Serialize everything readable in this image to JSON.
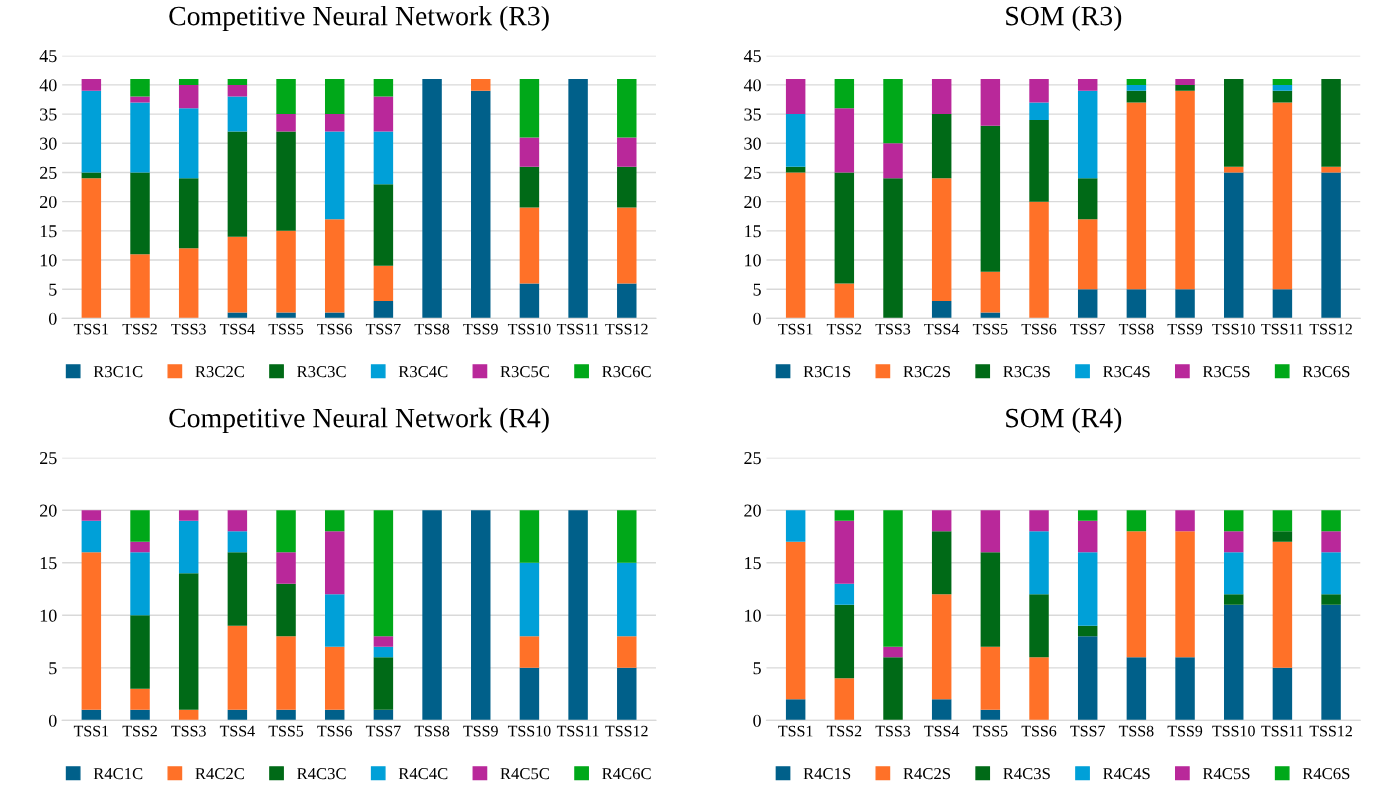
{
  "chart_data": [
    {
      "type": "bar",
      "title": "Competitive Neural Network (R3)",
      "stacked": true,
      "grid": "y",
      "legend": "bottom",
      "categories": [
        "TSS1",
        "TSS2",
        "TSS3",
        "TSS4",
        "TSS5",
        "TSS6",
        "TSS7",
        "TSS8",
        "TSS9",
        "TSS10",
        "TSS11",
        "TSS12"
      ],
      "ylim": [
        0,
        45
      ],
      "yticks": [
        0,
        5,
        10,
        15,
        20,
        25,
        30,
        35,
        40,
        45
      ],
      "series": [
        {
          "name": "R3C1C",
          "color": "#00608a",
          "values": [
            0,
            0,
            0,
            1,
            1,
            1,
            3,
            41,
            39,
            6,
            41,
            6
          ]
        },
        {
          "name": "R3C2C",
          "color": "#ff7128",
          "values": [
            24,
            11,
            12,
            13,
            14,
            16,
            6,
            0,
            2,
            13,
            0,
            13
          ]
        },
        {
          "name": "R3C3C",
          "color": "#006a17",
          "values": [
            1,
            14,
            12,
            18,
            17,
            0,
            14,
            0,
            0,
            7,
            0,
            7
          ]
        },
        {
          "name": "R3C4C",
          "color": "#00a0d8",
          "values": [
            14,
            12,
            12,
            6,
            0,
            15,
            9,
            0,
            0,
            0,
            0,
            0
          ]
        },
        {
          "name": "R3C5C",
          "color": "#b9289a",
          "values": [
            2,
            1,
            4,
            2,
            3,
            3,
            6,
            0,
            0,
            5,
            0,
            5
          ]
        },
        {
          "name": "R3C6C",
          "color": "#00a819",
          "values": [
            0,
            3,
            1,
            1,
            6,
            6,
            3,
            0,
            0,
            10,
            0,
            10
          ]
        }
      ]
    },
    {
      "type": "bar",
      "title": "SOM (R3)",
      "stacked": true,
      "grid": "y",
      "legend": "bottom",
      "categories": [
        "TSS1",
        "TSS2",
        "TSS3",
        "TSS4",
        "TSS5",
        "TSS6",
        "TSS7",
        "TSS8",
        "TSS9",
        "TSS10",
        "TSS11",
        "TSS12"
      ],
      "ylim": [
        0,
        45
      ],
      "yticks": [
        0,
        5,
        10,
        15,
        20,
        25,
        30,
        35,
        40,
        45
      ],
      "series": [
        {
          "name": "R3C1S",
          "color": "#00608a",
          "values": [
            0,
            0,
            0,
            3,
            1,
            0,
            5,
            5,
            5,
            25,
            5,
            25
          ]
        },
        {
          "name": "R3C2S",
          "color": "#ff7128",
          "values": [
            25,
            6,
            0,
            21,
            7,
            20,
            12,
            32,
            34,
            1,
            32,
            1
          ]
        },
        {
          "name": "R3C3S",
          "color": "#006a17",
          "values": [
            1,
            19,
            24,
            11,
            25,
            14,
            7,
            2,
            1,
            15,
            2,
            15
          ]
        },
        {
          "name": "R3C4S",
          "color": "#00a0d8",
          "values": [
            9,
            0,
            0,
            0,
            0,
            3,
            15,
            1,
            0,
            0,
            1,
            0
          ]
        },
        {
          "name": "R3C5S",
          "color": "#b9289a",
          "values": [
            6,
            11,
            6,
            6,
            8,
            4,
            2,
            0,
            1,
            0,
            0,
            0
          ]
        },
        {
          "name": "R3C6S",
          "color": "#00a819",
          "values": [
            0,
            5,
            11,
            0,
            0,
            0,
            0,
            1,
            0,
            0,
            1,
            0
          ]
        }
      ]
    },
    {
      "type": "bar",
      "title": "Competitive Neural Network (R4)",
      "stacked": true,
      "grid": "y",
      "legend": "bottom",
      "categories": [
        "TSS1",
        "TSS2",
        "TSS3",
        "TSS4",
        "TSS5",
        "TSS6",
        "TSS7",
        "TSS8",
        "TSS9",
        "TSS10",
        "TSS11",
        "TSS12"
      ],
      "ylim": [
        0,
        25
      ],
      "yticks": [
        0,
        5,
        10,
        15,
        20,
        25
      ],
      "series": [
        {
          "name": "R4C1C",
          "color": "#00608a",
          "values": [
            1,
            1,
            0,
            1,
            1,
            1,
            1,
            20,
            20,
            5,
            20,
            5
          ]
        },
        {
          "name": "R4C2C",
          "color": "#ff7128",
          "values": [
            15,
            2,
            1,
            8,
            7,
            6,
            0,
            0,
            0,
            3,
            0,
            3
          ]
        },
        {
          "name": "R4C3C",
          "color": "#006a17",
          "values": [
            0,
            7,
            13,
            7,
            5,
            0,
            5,
            0,
            0,
            0,
            0,
            0
          ]
        },
        {
          "name": "R4C4C",
          "color": "#00a0d8",
          "values": [
            3,
            6,
            5,
            2,
            0,
            5,
            1,
            0,
            0,
            7,
            0,
            7
          ]
        },
        {
          "name": "R4C5C",
          "color": "#b9289a",
          "values": [
            1,
            1,
            1,
            2,
            3,
            6,
            1,
            0,
            0,
            0,
            0,
            0
          ]
        },
        {
          "name": "R4C6C",
          "color": "#00a819",
          "values": [
            0,
            3,
            0,
            0,
            4,
            2,
            12,
            0,
            0,
            5,
            0,
            5
          ]
        }
      ]
    },
    {
      "type": "bar",
      "title": "SOM (R4)",
      "stacked": true,
      "grid": "y",
      "legend": "bottom",
      "categories": [
        "TSS1",
        "TSS2",
        "TSS3",
        "TSS4",
        "TSS5",
        "TSS6",
        "TSS7",
        "TSS8",
        "TSS9",
        "TSS10",
        "TSS11",
        "TSS12"
      ],
      "ylim": [
        0,
        25
      ],
      "yticks": [
        0,
        5,
        10,
        15,
        20,
        25
      ],
      "series": [
        {
          "name": "R4C1S",
          "color": "#00608a",
          "values": [
            2,
            0,
            0,
            2,
            1,
            0,
            8,
            6,
            6,
            11,
            5,
            11
          ]
        },
        {
          "name": "R4C2S",
          "color": "#ff7128",
          "values": [
            15,
            4,
            0,
            10,
            6,
            6,
            0,
            12,
            12,
            0,
            12,
            0
          ]
        },
        {
          "name": "R4C3S",
          "color": "#006a17",
          "values": [
            0,
            7,
            6,
            6,
            9,
            6,
            1,
            0,
            0,
            1,
            1,
            1
          ]
        },
        {
          "name": "R4C4S",
          "color": "#00a0d8",
          "values": [
            3,
            2,
            0,
            0,
            0,
            6,
            7,
            0,
            0,
            4,
            0,
            4
          ]
        },
        {
          "name": "R4C5S",
          "color": "#b9289a",
          "values": [
            0,
            6,
            1,
            2,
            4,
            2,
            3,
            0,
            2,
            2,
            0,
            2
          ]
        },
        {
          "name": "R4C6S",
          "color": "#00a819",
          "values": [
            0,
            1,
            13,
            0,
            0,
            0,
            1,
            2,
            0,
            2,
            2,
            2
          ]
        }
      ]
    }
  ]
}
